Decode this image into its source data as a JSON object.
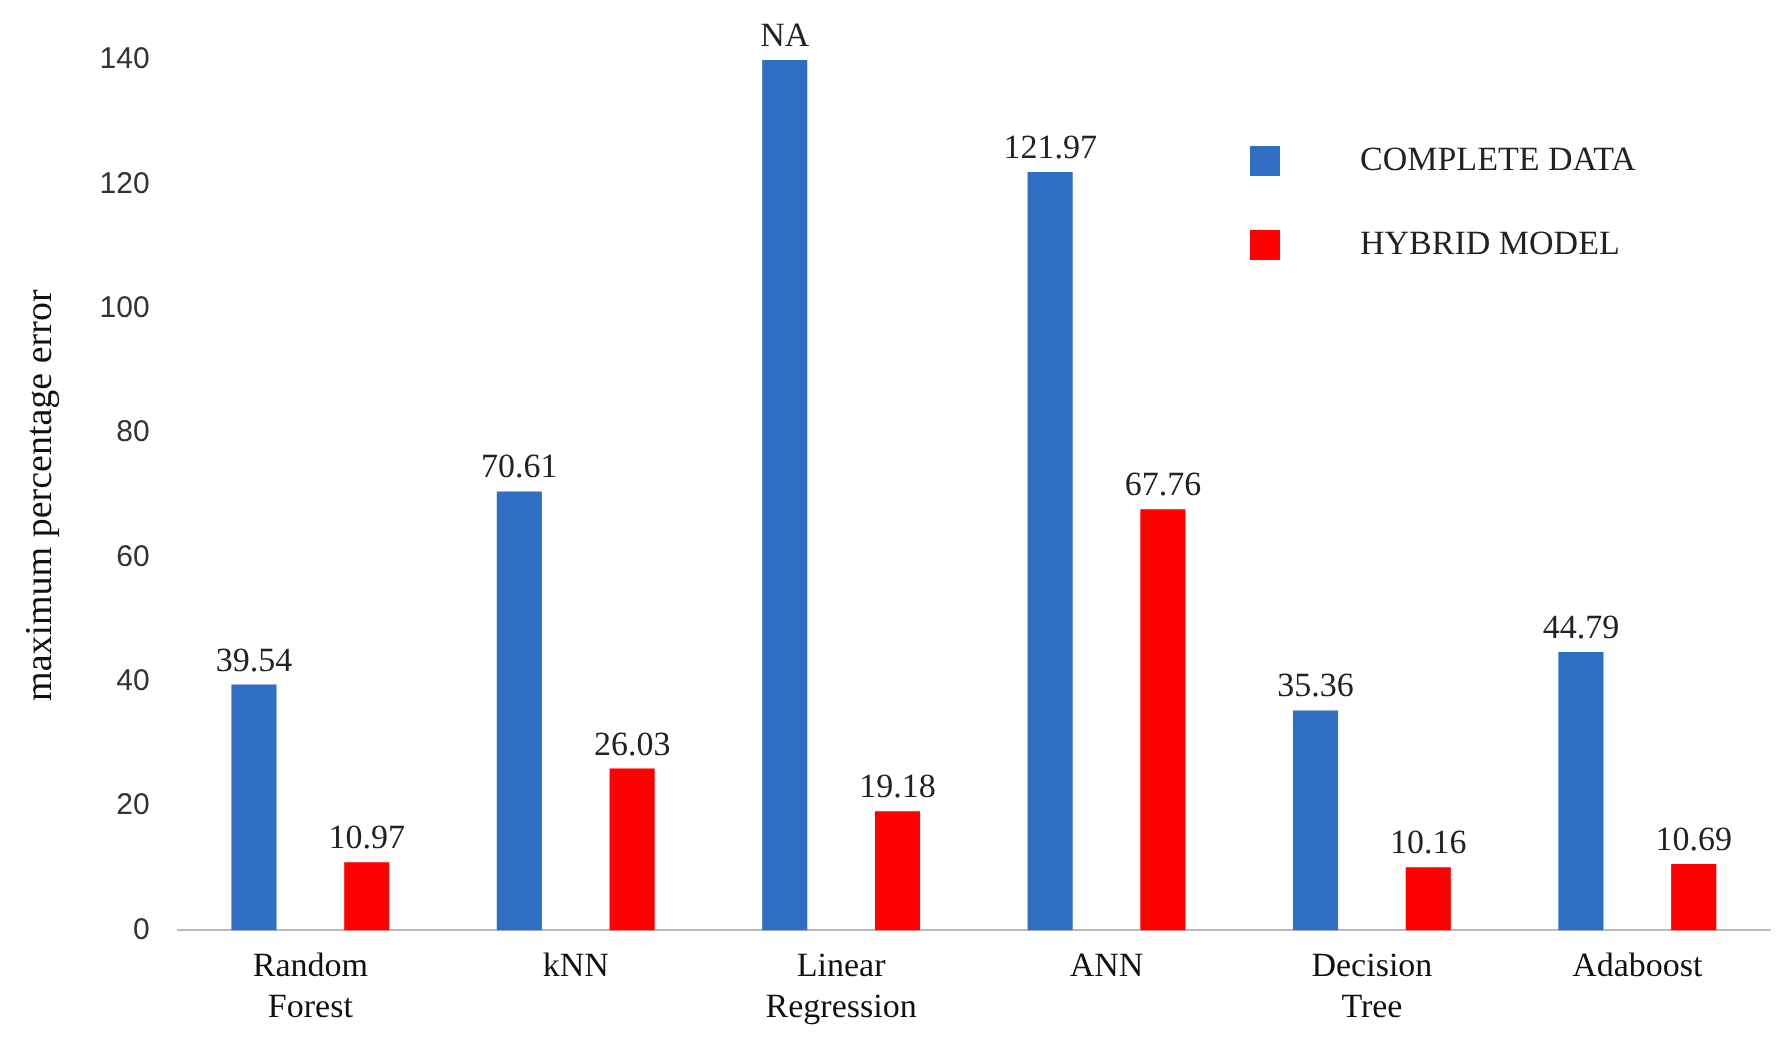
{
  "chart_data": {
    "type": "bar",
    "ylabel": "maximum percentage error",
    "categories": [
      "Random Forest",
      "kNN",
      "Linear Regression",
      "ANN",
      "Decision Tree",
      "Adaboost"
    ],
    "series": [
      {
        "name": "COMPLETE DATA",
        "color": "#2e6fc4",
        "values": [
          39.54,
          70.61,
          140,
          121.97,
          35.36,
          44.79
        ],
        "value_labels": [
          "39.54",
          "70.61",
          "NA",
          "121.97",
          "35.36",
          "44.79"
        ]
      },
      {
        "name": "HYBRID MODEL",
        "color": "#ff0000",
        "values": [
          10.97,
          26.03,
          19.18,
          67.76,
          10.16,
          10.69
        ],
        "value_labels": [
          "10.97",
          "26.03",
          "19.18",
          "67.76",
          "10.16",
          "10.69"
        ]
      }
    ],
    "ylim": [
      0,
      140
    ],
    "yticks": [
      0,
      20,
      40,
      60,
      80,
      100,
      120,
      140
    ],
    "grid": false,
    "legend": "top right"
  }
}
